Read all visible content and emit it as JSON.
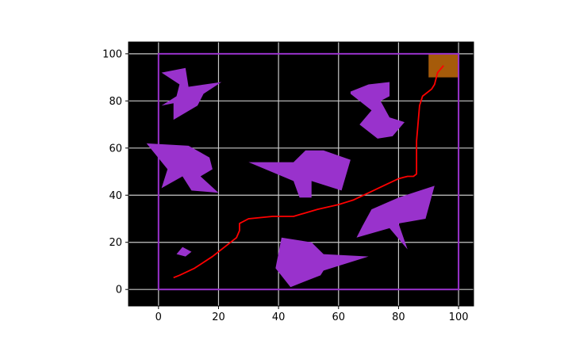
{
  "chart_data": {
    "type": "plot",
    "xlim": [
      -10,
      105
    ],
    "ylim": [
      -7,
      105
    ],
    "x_ticks": [
      0,
      20,
      40,
      60,
      80,
      100
    ],
    "y_ticks": [
      0,
      20,
      40,
      60,
      80,
      100
    ],
    "grid": true,
    "background_color": "#000000",
    "grid_color": "#c8c8c8",
    "boundary": {
      "x": [
        0,
        100
      ],
      "y": [
        0,
        100
      ],
      "color": "#9932cc"
    },
    "goal_region": {
      "x": [
        90,
        100
      ],
      "y": [
        90,
        100
      ],
      "color": "#b8650b"
    },
    "obstacle_color": "#9932cc",
    "obstacles": [
      [
        [
          1,
          92
        ],
        [
          9,
          94
        ],
        [
          10,
          86
        ],
        [
          21,
          88
        ],
        [
          15,
          83
        ],
        [
          13,
          78
        ],
        [
          5,
          72
        ],
        [
          5,
          79
        ],
        [
          1,
          78
        ],
        [
          6,
          82
        ],
        [
          7,
          87
        ]
      ],
      [
        [
          64,
          84
        ],
        [
          70,
          87
        ],
        [
          77,
          88
        ],
        [
          77,
          82
        ],
        [
          74,
          80
        ],
        [
          77,
          73
        ],
        [
          82,
          71
        ],
        [
          78,
          65
        ],
        [
          73,
          64
        ],
        [
          67,
          70
        ],
        [
          71,
          76
        ],
        [
          64,
          83
        ]
      ],
      [
        [
          -4,
          62
        ],
        [
          10,
          61
        ],
        [
          17,
          56
        ],
        [
          18,
          51
        ],
        [
          14,
          48
        ],
        [
          20,
          41
        ],
        [
          11,
          42
        ],
        [
          8,
          48
        ],
        [
          1,
          43
        ],
        [
          3,
          51
        ]
      ],
      [
        [
          30,
          54
        ],
        [
          45,
          54
        ],
        [
          49,
          59
        ],
        [
          55,
          59
        ],
        [
          64,
          55
        ],
        [
          61,
          42
        ],
        [
          51,
          46
        ],
        [
          51,
          39
        ],
        [
          47,
          39
        ],
        [
          45,
          46
        ]
      ],
      [
        [
          68,
          27
        ],
        [
          71,
          34
        ],
        [
          80,
          39
        ],
        [
          92,
          44
        ],
        [
          89,
          30
        ],
        [
          80,
          28
        ],
        [
          83,
          17
        ],
        [
          77,
          26
        ],
        [
          66,
          22
        ]
      ],
      [
        [
          41,
          22
        ],
        [
          51,
          20
        ],
        [
          55,
          15
        ],
        [
          70,
          14
        ],
        [
          55,
          8
        ],
        [
          54,
          6
        ],
        [
          50,
          4
        ],
        [
          44,
          1
        ],
        [
          39,
          9
        ]
      ],
      [
        [
          8,
          18
        ],
        [
          11,
          16
        ],
        [
          9,
          14
        ],
        [
          6,
          15
        ]
      ]
    ],
    "path": {
      "color": "#ff0000",
      "x": [
        5,
        7,
        12,
        18,
        22,
        26,
        27,
        27,
        30,
        38,
        45,
        53,
        60,
        65,
        70,
        75,
        80,
        83,
        85,
        86,
        86,
        87,
        88,
        91,
        92,
        93,
        95
      ],
      "y": [
        5,
        6,
        9,
        14,
        18,
        22,
        25,
        28,
        30,
        31,
        31,
        34,
        36,
        38,
        41,
        44,
        47,
        48,
        48,
        49,
        63,
        78,
        82,
        85,
        87,
        92,
        95
      ]
    }
  }
}
